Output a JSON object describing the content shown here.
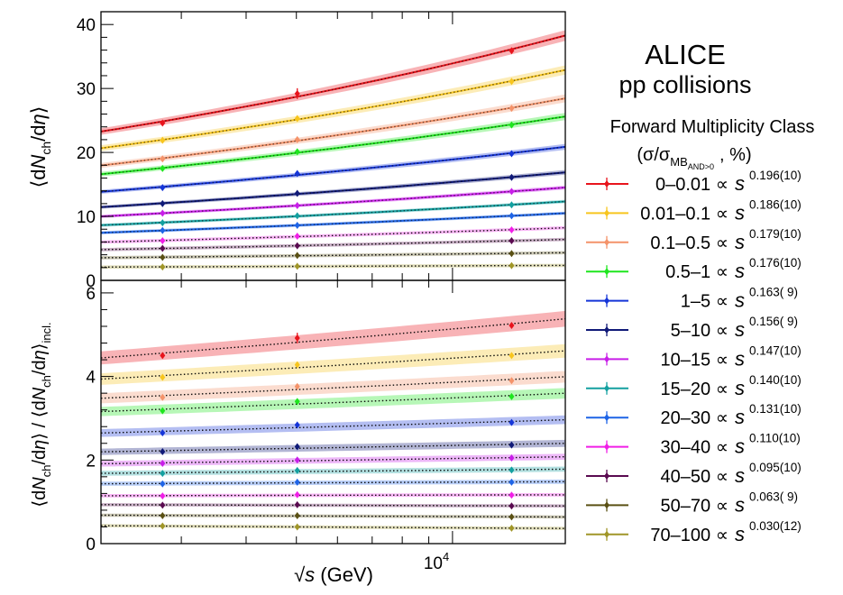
{
  "colors": {
    "series": [
      "#e8141c",
      "#f7c51e",
      "#f4936a",
      "#1ee61e",
      "#1535d8",
      "#101a78",
      "#c81ee8",
      "#14a0a0",
      "#1e64e6",
      "#f01ee6",
      "#5a0a50",
      "#5a5014",
      "#a09628"
    ]
  },
  "chart_data": [
    {
      "type": "line",
      "panel": "top",
      "xscale": "log",
      "xlim": [
        2100,
        16500
      ],
      "ylim": [
        0,
        42
      ],
      "ylabel": "⟨dN_ch/dη⟩",
      "xticks_labeled": [
        10000
      ],
      "y_ticks": [
        0,
        10,
        20,
        30,
        40
      ],
      "x_points": [
        2760,
        5020,
        13000
      ],
      "series": [
        {
          "name": "0–0.01",
          "values": [
            24.6,
            29.2,
            35.9
          ],
          "fit_exponent": 0.196
        },
        {
          "name": "0.01–0.1",
          "values": [
            21.9,
            25.3,
            31.1
          ],
          "fit_exponent": 0.186
        },
        {
          "name": "0.1–0.5",
          "values": [
            19.0,
            22.0,
            26.9
          ],
          "fit_exponent": 0.179
        },
        {
          "name": "0.5–1",
          "values": [
            17.5,
            20.1,
            24.3
          ],
          "fit_exponent": 0.176
        },
        {
          "name": "1–5",
          "values": [
            14.5,
            16.7,
            19.8
          ],
          "fit_exponent": 0.163
        },
        {
          "name": "5–10",
          "values": [
            12.0,
            13.6,
            16.1
          ],
          "fit_exponent": 0.156
        },
        {
          "name": "10–15",
          "values": [
            10.5,
            11.7,
            13.9
          ],
          "fit_exponent": 0.147
        },
        {
          "name": "15–20",
          "values": [
            9.0,
            10.1,
            11.8
          ],
          "fit_exponent": 0.14
        },
        {
          "name": "20–30",
          "values": [
            7.8,
            8.6,
            10.1
          ],
          "fit_exponent": 0.131
        },
        {
          "name": "30–40",
          "values": [
            6.2,
            6.9,
            7.9
          ],
          "fit_exponent": 0.11
        },
        {
          "name": "40–50",
          "values": [
            5.0,
            5.4,
            6.2
          ],
          "fit_exponent": 0.095
        },
        {
          "name": "50–70",
          "values": [
            3.6,
            3.9,
            4.2
          ],
          "fit_exponent": 0.063
        },
        {
          "name": "70–100",
          "values": [
            2.1,
            2.2,
            2.3
          ],
          "fit_exponent": 0.03
        }
      ]
    },
    {
      "type": "line",
      "panel": "bottom",
      "xscale": "log",
      "xlim": [
        2100,
        16500
      ],
      "ylim": [
        0,
        6.3
      ],
      "ylabel": "⟨dN_ch/dη⟩ / ⟨dN_ch/dη⟩_incl.",
      "xlabel": "√s (GeV)",
      "xticks_labeled": [
        10000
      ],
      "y_ticks": [
        0,
        2,
        4,
        6
      ],
      "x_points": [
        2760,
        5020,
        13000
      ],
      "series": [
        {
          "name": "0–0.01",
          "values": [
            4.5,
            4.92,
            5.22
          ]
        },
        {
          "name": "0.01–0.1",
          "values": [
            3.98,
            4.28,
            4.5
          ]
        },
        {
          "name": "0.1–0.5",
          "values": [
            3.5,
            3.76,
            3.9
          ]
        },
        {
          "name": "0.5–1",
          "values": [
            3.18,
            3.4,
            3.52
          ]
        },
        {
          "name": "1–5",
          "values": [
            2.65,
            2.84,
            2.9
          ]
        },
        {
          "name": "5–10",
          "values": [
            2.2,
            2.32,
            2.36
          ]
        },
        {
          "name": "10–15",
          "values": [
            1.92,
            2.0,
            2.05
          ]
        },
        {
          "name": "15–20",
          "values": [
            1.68,
            1.75,
            1.76
          ]
        },
        {
          "name": "20–30",
          "values": [
            1.43,
            1.47,
            1.47
          ]
        },
        {
          "name": "30–40",
          "values": [
            1.14,
            1.17,
            1.16
          ]
        },
        {
          "name": "40–50",
          "values": [
            0.92,
            0.93,
            0.9
          ]
        },
        {
          "name": "50–70",
          "values": [
            0.67,
            0.67,
            0.64
          ]
        },
        {
          "name": "70–100",
          "values": [
            0.42,
            0.4,
            0.37
          ]
        }
      ]
    }
  ],
  "legend": {
    "experiment": "ALICE",
    "system": "pp collisions",
    "header": "Forward Multiplicity Class",
    "subheader_pre": "(σ/σ",
    "subheader_sub": "MB",
    "subheader_subsub": "AND>0",
    "subheader_post": ", %)",
    "entries": [
      {
        "label": "0–0.01",
        "exp": "0.196(10)"
      },
      {
        "label": "0.01–0.1",
        "exp": "0.186(10)"
      },
      {
        "label": "0.1–0.5",
        "exp": "0.179(10)"
      },
      {
        "label": "0.5–1",
        "exp": "0.176(10)"
      },
      {
        "label": "1–5",
        "exp": "0.163( 9)"
      },
      {
        "label": "5–10",
        "exp": "0.156( 9)"
      },
      {
        "label": "10–15",
        "exp": "0.147(10)"
      },
      {
        "label": "15–20",
        "exp": "0.140(10)"
      },
      {
        "label": "20–30",
        "exp": "0.131(10)"
      },
      {
        "label": "30–40",
        "exp": "0.110(10)"
      },
      {
        "label": "40–50",
        "exp": "0.095(10)"
      },
      {
        "label": "50–70",
        "exp": "0.063( 9)"
      },
      {
        "label": "70–100",
        "exp": "0.030(12)"
      }
    ],
    "propto": "∝",
    "s_symbol": "s"
  },
  "axis_text": {
    "top_y_pre": "⟨d",
    "top_y_N": "N",
    "top_y_sub": "ch",
    "top_y_post": "/d",
    "top_y_eta": "η",
    "top_y_close": "⟩",
    "bottom_y_pre": "⟨d",
    "bottom_y_N": "N",
    "bottom_y_sub": "ch",
    "bottom_y_mid": "/d",
    "bottom_y_eta": "η",
    "bottom_y_close": "⟩ / ⟨d",
    "bottom_y_N2": "N",
    "bottom_y_sub2": "ch",
    "bottom_y_mid2": "/d",
    "bottom_y_eta2": "η",
    "bottom_y_close2": "⟩",
    "bottom_y_subincl": "incl.",
    "x_sqrt": "√",
    "x_s": "s",
    "x_unit": " (GeV)",
    "x_tick_base": "10",
    "x_tick_exp": "4"
  }
}
